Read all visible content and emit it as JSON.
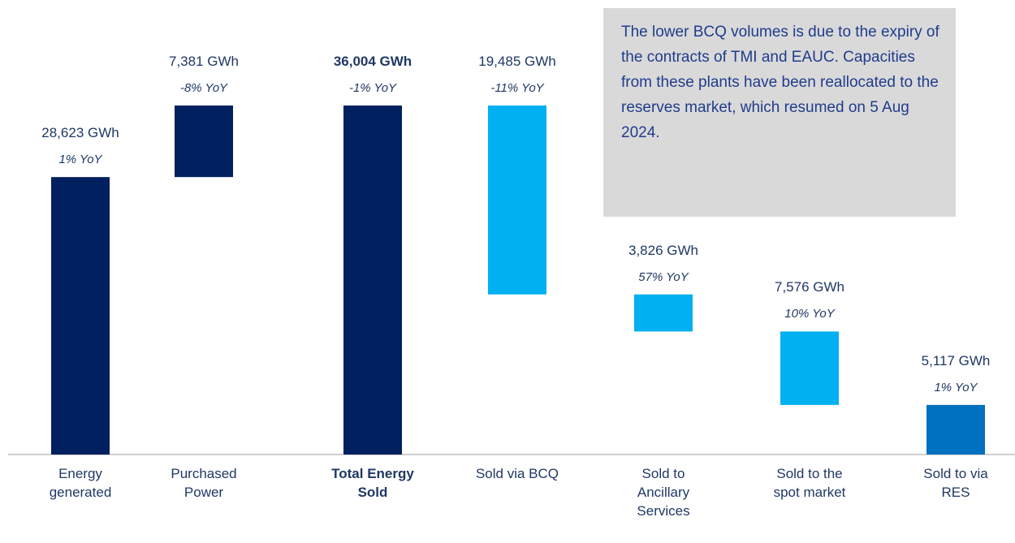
{
  "chart_data": {
    "type": "waterfall",
    "categories": [
      "Energy generated",
      "Purchased Power",
      "Total Energy Sold",
      "Sold via BCQ",
      "Sold to Ancillary Services",
      "Sold to the spot market",
      "Sold to via RES"
    ],
    "measures": [
      "increase",
      "increase",
      "total",
      "decrease",
      "decrease",
      "decrease",
      "decrease"
    ],
    "values": [
      28623,
      7381,
      36004,
      19485,
      3826,
      7576,
      5117
    ],
    "value_labels": [
      "28,623 GWh",
      "7,381 GWh",
      "36,004 GWh",
      "19,485 GWh",
      "3,826 GWh",
      "7,576 GWh",
      "5,117 GWh"
    ],
    "yoy": {
      "values": [
        1,
        -8,
        -1,
        -11,
        57,
        10,
        1
      ],
      "value_labels": [
        "1% YoY",
        "-8% YoY",
        "-1% YoY",
        "-11% YoY",
        "57% YoY",
        "10% YoY",
        "1% YoY"
      ]
    },
    "colors": [
      "#002060",
      "#002060",
      "#002060",
      "#00b0f0",
      "#00b0f0",
      "#00b0f0",
      "#0070c0"
    ],
    "annotation": "The lower BCQ volumes is due to the expiry of the contracts of TMI and EAUC. Capacities from these plants have been reallocated to the reserves market, which resumed on 5 Aug 2024."
  }
}
